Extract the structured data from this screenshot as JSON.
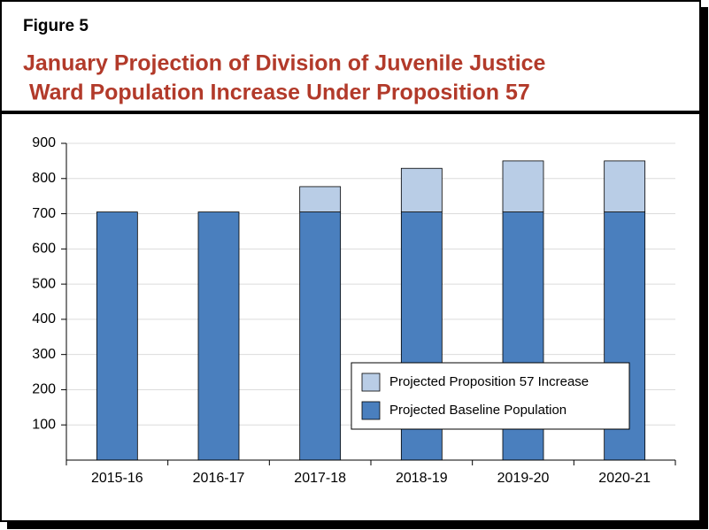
{
  "chart_data": {
    "type": "stacked-bar",
    "figure_label": "Figure 5",
    "title": [
      "January Projection of Division of Juvenile Justice",
      " Ward Population Increase Under Proposition 57"
    ],
    "categories": [
      "2015-16",
      "2016-17",
      "2017-18",
      "2018-19",
      "2019-20",
      "2020-21"
    ],
    "series": [
      {
        "name": "Projected Baseline Population",
        "color": "#4a7fbe",
        "values": [
          705,
          705,
          705,
          705,
          705,
          705
        ]
      },
      {
        "name": "Projected Proposition 57 Increase",
        "color": "#b9cde6",
        "values": [
          0,
          0,
          72,
          124,
          145,
          145
        ]
      }
    ],
    "ylim": [
      0,
      900
    ],
    "yticks": [
      100,
      200,
      300,
      400,
      500,
      600,
      700,
      800,
      900
    ],
    "grid": true
  }
}
